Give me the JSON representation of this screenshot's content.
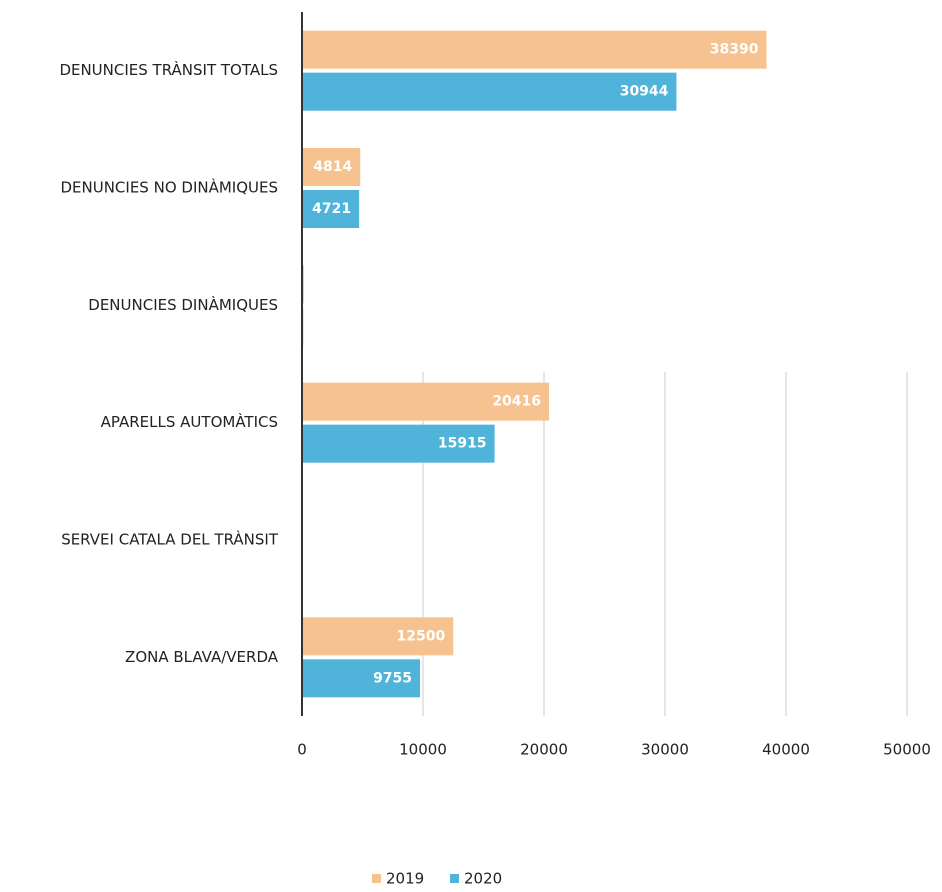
{
  "chart_data": {
    "type": "hbar",
    "categories": [
      "DENUNCIES TRÀNSIT TOTALS",
      "DENUNCIES NO DINÀMIQUES",
      "DENUNCIES DINÀMIQUES",
      "APARELLS AUTOMÀTICS",
      "SERVEI CATALA DEL TRÀNSIT",
      "ZONA BLAVA/VERDA"
    ],
    "series": [
      {
        "name": "2019",
        "color": "#f6c28f",
        "values": [
          38390,
          4814,
          150,
          20416,
          0,
          12500
        ],
        "value_labels": [
          "38390",
          "4814",
          null,
          "20416",
          null,
          "12500"
        ]
      },
      {
        "name": "2020",
        "color": "#4fb3da",
        "values": [
          30944,
          4721,
          100,
          15915,
          0,
          9755
        ],
        "value_labels": [
          "30944",
          "4721",
          null,
          "15915",
          null,
          "9755"
        ]
      }
    ],
    "xlim": [
      0,
      50000
    ],
    "xticks": [
      0,
      10000,
      20000,
      30000,
      40000,
      50000
    ],
    "grid": true,
    "legend": "bottom"
  }
}
